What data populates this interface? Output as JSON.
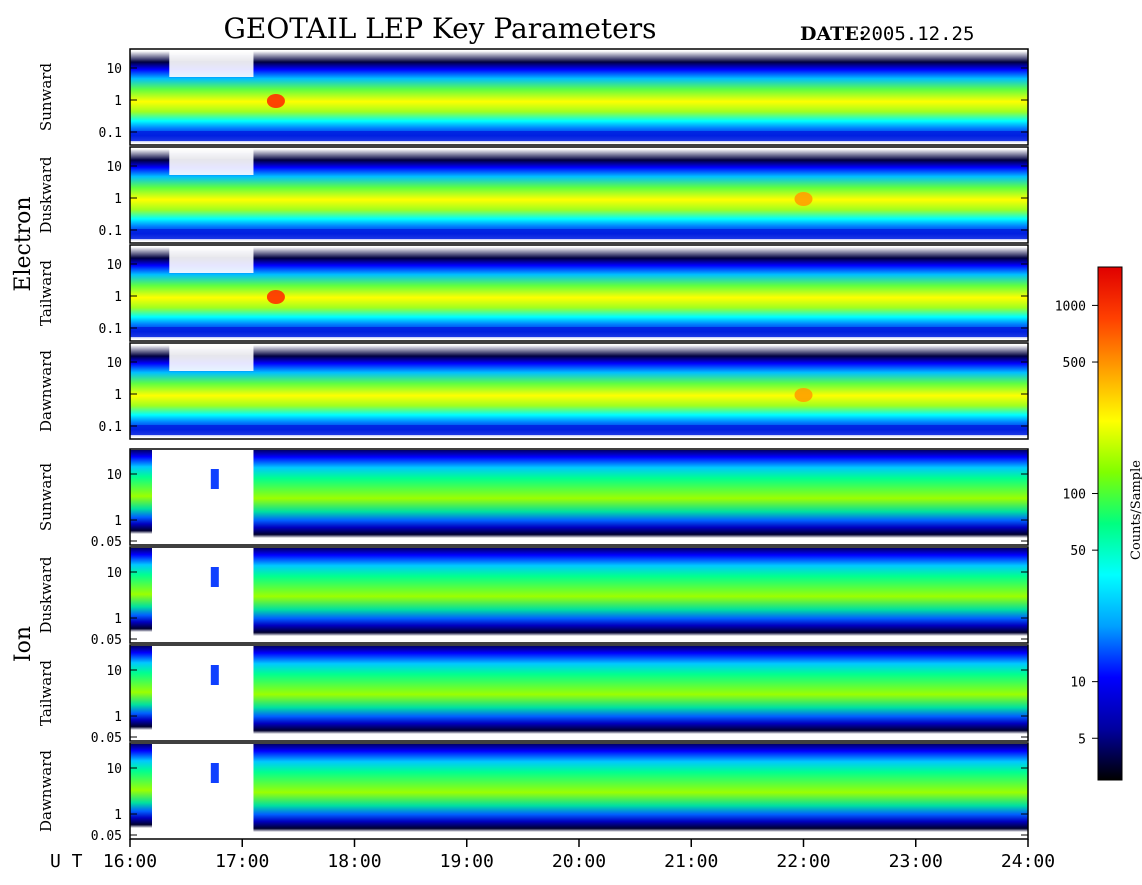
{
  "title": "GEOTAIL LEP Key Parameters",
  "date_label": "DATE:",
  "date_value": "2005.12.25",
  "x_axis": {
    "label": "U T",
    "ticks": [
      "16:00",
      "17:00",
      "18:00",
      "19:00",
      "20:00",
      "21:00",
      "22:00",
      "23:00",
      "24:00"
    ],
    "range_hours": [
      16,
      24
    ]
  },
  "colorbar": {
    "label": "Counts/Sample",
    "scale": "log",
    "range": [
      3,
      1600
    ],
    "ticks": [
      {
        "value": 5,
        "label": "5"
      },
      {
        "value": 10,
        "label": "10"
      },
      {
        "value": 50,
        "label": "50"
      },
      {
        "value": 100,
        "label": "100"
      },
      {
        "value": 500,
        "label": "500"
      },
      {
        "value": 1000,
        "label": "1000"
      }
    ],
    "colors": [
      "#000000",
      "#0000a0",
      "#0000ff",
      "#00a0ff",
      "#00ffff",
      "#00ff80",
      "#80ff00",
      "#ffff00",
      "#ffa000",
      "#ff4000",
      "#e00000"
    ]
  },
  "chart_data": {
    "type": "heatmap",
    "groups": [
      {
        "name": "Electron",
        "y_scale": "log",
        "y_ticks": [
          "10",
          "1",
          "0.1"
        ],
        "ylim": [
          0.05,
          20
        ],
        "panels": [
          {
            "label": "Sunward",
            "peak_hour": 17.3,
            "peak_counts": 1100
          },
          {
            "label": "Duskward",
            "peak_hour": 22.0,
            "peak_counts": 500
          },
          {
            "label": "Tailward",
            "peak_hour": 17.3,
            "peak_counts": 1100
          },
          {
            "label": "Dawnward",
            "peak_hour": 22.0,
            "peak_counts": 500
          }
        ]
      },
      {
        "name": "Ion",
        "y_scale": "log",
        "y_ticks": [
          "10",
          "1",
          "0.05"
        ],
        "ylim": [
          0.05,
          25
        ],
        "panels": [
          {
            "label": "Sunward",
            "gap_hours": [
              16.4,
              17.1
            ]
          },
          {
            "label": "Duskward",
            "gap_hours": [
              16.4,
              17.1
            ]
          },
          {
            "label": "Tailward",
            "gap_hours": [
              16.4,
              17.1
            ]
          },
          {
            "label": "Dawnward",
            "gap_hours": [
              16.4,
              17.1
            ]
          }
        ]
      }
    ]
  }
}
